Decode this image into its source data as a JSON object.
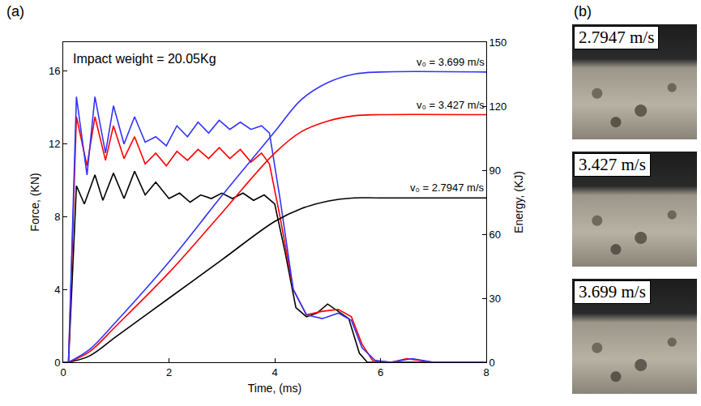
{
  "chart_data": {
    "type": "line",
    "panel_label": "(a)",
    "annotations": [
      "Impact weight = 20.05Kg"
    ],
    "x_label": "Time, (ms)",
    "y_label": "Force, (KN)",
    "y2_label": "Energy, (KJ)",
    "xlim": [
      0,
      8
    ],
    "xticks": [
      0,
      2,
      4,
      6,
      8
    ],
    "ylim": [
      0,
      17.6
    ],
    "yticks": [
      0,
      4,
      8,
      12,
      16
    ],
    "y2lim": [
      0,
      150
    ],
    "y2ticks": [
      0,
      30,
      60,
      90,
      120,
      150
    ],
    "grid": false,
    "series": [
      {
        "color": "#000000",
        "axis": "y",
        "line_style": "solid",
        "x": [
          0,
          0.1,
          0.25,
          0.4,
          0.6,
          0.75,
          0.95,
          1.15,
          1.35,
          1.55,
          1.75,
          2.0,
          2.2,
          2.4,
          2.6,
          2.8,
          3.0,
          3.2,
          3.4,
          3.6,
          3.8,
          4.0,
          4.2,
          4.4,
          4.6,
          4.8,
          5.0,
          5.2,
          5.4,
          5.6,
          5.75,
          8
        ],
        "values": [
          0,
          0,
          9.7,
          8.7,
          10.3,
          8.9,
          10.4,
          9.0,
          10.5,
          9.2,
          9.9,
          9.0,
          9.3,
          8.8,
          9.2,
          9.0,
          9.3,
          9.0,
          9.3,
          8.9,
          9.2,
          8.7,
          6.0,
          3.0,
          2.5,
          2.7,
          3.2,
          2.8,
          2.4,
          0.5,
          0,
          0
        ]
      },
      {
        "color": "#ff0000",
        "axis": "y",
        "line_style": "solid",
        "x": [
          0,
          0.1,
          0.25,
          0.45,
          0.6,
          0.8,
          0.95,
          1.15,
          1.35,
          1.55,
          1.75,
          1.95,
          2.15,
          2.35,
          2.55,
          2.75,
          2.95,
          3.15,
          3.35,
          3.55,
          3.75,
          3.9,
          4.1,
          4.35,
          4.6,
          4.9,
          5.2,
          5.45,
          5.65,
          5.85,
          6.2,
          6.5,
          7.0,
          8
        ],
        "values": [
          0,
          0,
          13.5,
          10.8,
          13.5,
          11.1,
          13.0,
          11.2,
          12.4,
          10.9,
          11.5,
          10.8,
          11.6,
          11.1,
          11.7,
          11.2,
          11.8,
          11.2,
          11.7,
          11.0,
          11.5,
          10.9,
          8.0,
          4.0,
          2.6,
          2.8,
          2.9,
          2.5,
          1.0,
          0.1,
          0,
          0.2,
          0,
          0
        ]
      },
      {
        "color": "#3333ff",
        "axis": "y",
        "line_style": "solid",
        "x": [
          0,
          0.1,
          0.25,
          0.45,
          0.6,
          0.8,
          0.95,
          1.15,
          1.35,
          1.55,
          1.75,
          1.95,
          2.15,
          2.35,
          2.55,
          2.75,
          2.95,
          3.15,
          3.35,
          3.55,
          3.75,
          3.9,
          4.1,
          4.35,
          4.6,
          4.9,
          5.2,
          5.45,
          5.65,
          5.9,
          6.2,
          6.6,
          7.0,
          8
        ],
        "values": [
          0,
          0,
          14.6,
          10.3,
          14.6,
          11.5,
          14.1,
          12.0,
          13.5,
          12.1,
          12.4,
          11.9,
          13.0,
          12.4,
          13.2,
          12.6,
          13.3,
          12.8,
          13.2,
          12.8,
          13.0,
          12.6,
          9.0,
          4.0,
          2.6,
          2.4,
          2.7,
          2.3,
          0.8,
          0.1,
          0,
          0.2,
          0,
          0
        ]
      },
      {
        "color": "#000000",
        "axis": "y2",
        "line_style": "smooth",
        "label": "v₀ = 2.7947 m/s",
        "x": [
          0.1,
          0.5,
          1,
          2,
          3,
          4,
          4.5,
          5,
          5.5,
          6,
          8
        ],
        "values": [
          0,
          3,
          12,
          30,
          48,
          66,
          72,
          75.5,
          77,
          77,
          77
        ]
      },
      {
        "color": "#ff0000",
        "axis": "y2",
        "line_style": "smooth",
        "label": "v₀ = 3.427 m/s",
        "x": [
          0.1,
          0.5,
          1,
          2,
          3,
          4,
          4.5,
          5,
          5.5,
          6,
          8
        ],
        "values": [
          0,
          5,
          17,
          42,
          70,
          98,
          108,
          113,
          115.5,
          116,
          116
        ]
      },
      {
        "color": "#3333ff",
        "axis": "y2",
        "line_style": "smooth",
        "label": "v₀ = 3.699 m/s",
        "x": [
          0.1,
          0.5,
          1,
          2,
          3,
          4,
          4.5,
          5,
          5.5,
          6,
          8
        ],
        "values": [
          0,
          6,
          19,
          47,
          78,
          108,
          123,
          131,
          135,
          136,
          136
        ]
      }
    ]
  },
  "photos": {
    "panel_label": "(b)",
    "labels": [
      "2.7947 m/s",
      "3.427 m/s",
      "3.699 m/s"
    ]
  }
}
